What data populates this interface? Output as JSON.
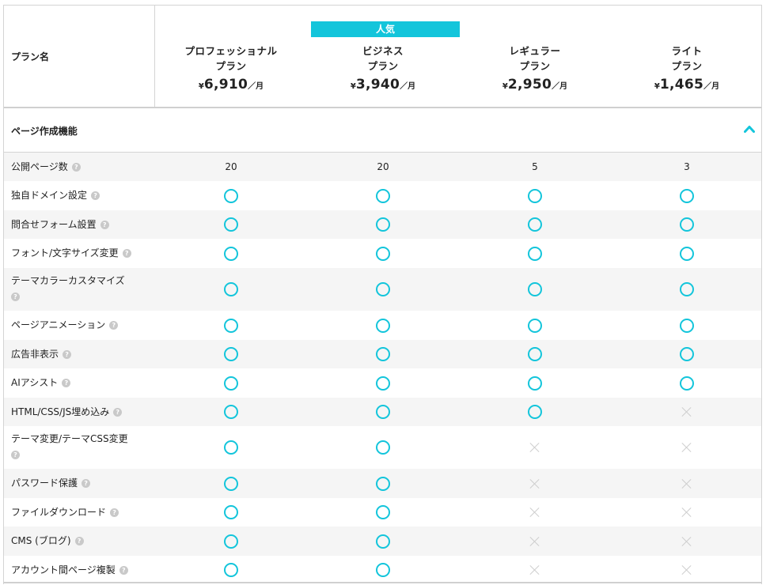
{
  "header": {
    "plan_label": "プラン名",
    "popular_badge": "人気",
    "plans": [
      {
        "name_line1": "プロフェッショナル",
        "name_line2": "プラン",
        "currency": "¥",
        "price": "6,910",
        "unit": "／月"
      },
      {
        "name_line1": "ビジネス",
        "name_line2": "プラン",
        "currency": "¥",
        "price": "3,940",
        "unit": "／月"
      },
      {
        "name_line1": "レギュラー",
        "name_line2": "プラン",
        "currency": "¥",
        "price": "2,950",
        "unit": "／月"
      },
      {
        "name_line1": "ライト",
        "name_line2": "プラン",
        "currency": "¥",
        "price": "1,465",
        "unit": "／月"
      }
    ]
  },
  "section": {
    "title": "ページ作成機能",
    "toggle_icon": "chevron-up-icon"
  },
  "colors": {
    "accent": "#13c5db",
    "cross": "#cfcfcf",
    "help": "#c9c9c9"
  },
  "rows": [
    {
      "label": "公開ページ数",
      "values": [
        "20",
        "20",
        "5",
        "3"
      ]
    },
    {
      "label": "独自ドメイン設定",
      "values": [
        "yes",
        "yes",
        "yes",
        "yes"
      ]
    },
    {
      "label": "問合せフォーム設置",
      "values": [
        "yes",
        "yes",
        "yes",
        "yes"
      ]
    },
    {
      "label": "フォント/文字サイズ変更",
      "values": [
        "yes",
        "yes",
        "yes",
        "yes"
      ]
    },
    {
      "label": "テーマカラーカスタマイズ",
      "values": [
        "yes",
        "yes",
        "yes",
        "yes"
      ]
    },
    {
      "label": "ページアニメーション",
      "values": [
        "yes",
        "yes",
        "yes",
        "yes"
      ]
    },
    {
      "label": "広告非表示",
      "values": [
        "yes",
        "yes",
        "yes",
        "yes"
      ]
    },
    {
      "label": "AIアシスト",
      "values": [
        "yes",
        "yes",
        "yes",
        "yes"
      ]
    },
    {
      "label": "HTML/CSS/JS埋め込み",
      "values": [
        "yes",
        "yes",
        "yes",
        "no"
      ]
    },
    {
      "label": "テーマ変更/テーマCSS変更",
      "values": [
        "yes",
        "yes",
        "no",
        "no"
      ]
    },
    {
      "label": "パスワード保護",
      "values": [
        "yes",
        "yes",
        "no",
        "no"
      ]
    },
    {
      "label": "ファイルダウンロード",
      "values": [
        "yes",
        "yes",
        "no",
        "no"
      ]
    },
    {
      "label": "CMS (ブログ)",
      "values": [
        "yes",
        "yes",
        "no",
        "no"
      ]
    },
    {
      "label": "アカウント間ページ複製",
      "values": [
        "yes",
        "yes",
        "no",
        "no"
      ]
    }
  ]
}
